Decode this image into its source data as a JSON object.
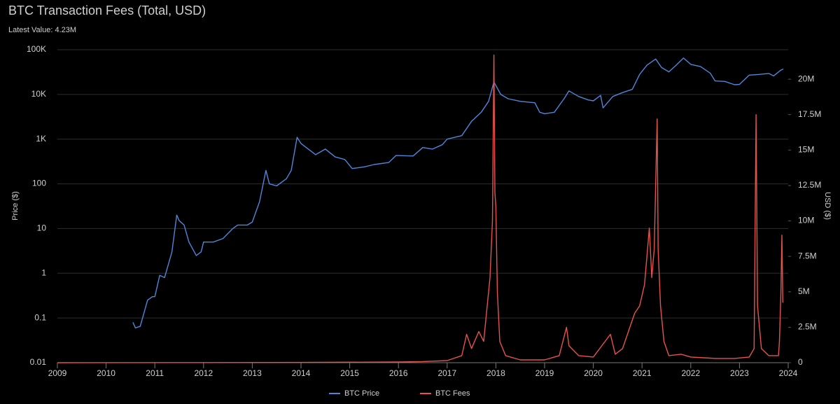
{
  "chart_data": {
    "type": "line",
    "title": "BTC Transaction Fees (Total, USD)",
    "subtitle": "Latest Value: 4.23M",
    "y_label": "Price ($)",
    "y2_label": "USD ($)",
    "xlim": [
      2009,
      2024
    ],
    "xticks": [
      2009,
      2010,
      2011,
      2012,
      2013,
      2014,
      2015,
      2016,
      2017,
      2018,
      2019,
      2020,
      2021,
      2022,
      2023,
      2024
    ],
    "ylog": true,
    "ylim": [
      0.01,
      100000
    ],
    "yticks": [
      0.01,
      0.1,
      1,
      10,
      100,
      {
        "value": 1000,
        "label": "1K"
      },
      {
        "value": 10000,
        "label": "10K"
      },
      {
        "value": 100000,
        "label": "100K"
      }
    ],
    "y2lim": [
      0,
      22080000
    ],
    "y2ticks": [
      0,
      {
        "value": 2500000,
        "label": "2.5M"
      },
      {
        "value": 5000000,
        "label": "5M"
      },
      {
        "value": 7500000,
        "label": "7.5M"
      },
      {
        "value": 10000000,
        "label": "10M"
      },
      {
        "value": 12500000,
        "label": "12.5M"
      },
      {
        "value": 15000000,
        "label": "15M"
      },
      {
        "value": 17500000,
        "label": "17.5M"
      },
      {
        "value": 20000000,
        "label": "20M"
      }
    ],
    "grid": true,
    "legend": "bottom",
    "series": [
      {
        "name": "BTC Price",
        "color": "#4f86d9",
        "x": [
          2010.55,
          2010.6,
          2010.7,
          2010.85,
          2010.95,
          2011.0,
          2011.1,
          2011.2,
          2011.35,
          2011.45,
          2011.5,
          2011.6,
          2011.7,
          2011.85,
          2011.95,
          2012.0,
          2012.2,
          2012.4,
          2012.6,
          2012.7,
          2012.9,
          2013.0,
          2013.15,
          2013.28,
          2013.35,
          2013.5,
          2013.7,
          2013.8,
          2013.92,
          2014.0,
          2014.15,
          2014.3,
          2014.5,
          2014.7,
          2014.9,
          2015.05,
          2015.3,
          2015.5,
          2015.8,
          2015.95,
          2016.3,
          2016.5,
          2016.7,
          2016.9,
          2017.0,
          2017.3,
          2017.5,
          2017.7,
          2017.85,
          2017.96,
          2018.1,
          2018.25,
          2018.5,
          2018.8,
          2018.9,
          2019.0,
          2019.2,
          2019.4,
          2019.5,
          2019.7,
          2019.9,
          2020.0,
          2020.15,
          2020.2,
          2020.4,
          2020.6,
          2020.8,
          2020.95,
          2021.1,
          2021.28,
          2021.4,
          2021.55,
          2021.7,
          2021.85,
          2022.0,
          2022.2,
          2022.4,
          2022.5,
          2022.7,
          2022.9,
          2023.0,
          2023.2,
          2023.4,
          2023.6,
          2023.7,
          2023.85,
          2023.9
        ],
        "values": [
          0.08,
          0.06,
          0.065,
          0.25,
          0.3,
          0.3,
          0.9,
          0.8,
          3,
          20,
          15,
          12,
          5,
          2.5,
          3,
          5,
          5,
          6,
          10,
          12,
          12,
          14,
          40,
          200,
          100,
          90,
          130,
          200,
          1100,
          800,
          600,
          450,
          600,
          400,
          350,
          220,
          240,
          270,
          300,
          430,
          420,
          650,
          600,
          750,
          1000,
          1200,
          2500,
          4000,
          7000,
          19000,
          10000,
          8000,
          7000,
          6500,
          4000,
          3700,
          4000,
          8000,
          12000,
          9000,
          7500,
          7200,
          9500,
          5000,
          9000,
          11000,
          13000,
          28000,
          45000,
          62000,
          40000,
          32000,
          45000,
          65000,
          47000,
          42000,
          30000,
          20000,
          19500,
          16500,
          16800,
          27000,
          28000,
          29500,
          26000,
          35000,
          37000
        ]
      },
      {
        "name": "BTC Fees",
        "color": "#e5534b",
        "axis": "y2",
        "x": [
          2009.0,
          2012.0,
          2014.0,
          2016.0,
          2016.5,
          2017.0,
          2017.3,
          2017.4,
          2017.5,
          2017.65,
          2017.75,
          2017.88,
          2017.93,
          2017.96,
          2017.98,
          2018.0,
          2018.03,
          2018.08,
          2018.2,
          2018.5,
          2019.0,
          2019.3,
          2019.45,
          2019.5,
          2019.7,
          2020.0,
          2020.35,
          2020.45,
          2020.6,
          2020.75,
          2020.85,
          2020.95,
          2021.05,
          2021.1,
          2021.15,
          2021.2,
          2021.25,
          2021.31,
          2021.33,
          2021.38,
          2021.45,
          2021.55,
          2021.8,
          2022.0,
          2022.5,
          2022.9,
          2023.2,
          2023.3,
          2023.34,
          2023.37,
          2023.45,
          2023.6,
          2023.8,
          2023.82,
          2023.85,
          2023.87,
          2023.89
        ],
        "values": [
          0,
          10000,
          20000,
          50000,
          80000,
          150000,
          500000,
          2000000,
          1000000,
          2200000,
          1500000,
          6000000,
          10000000,
          21700000,
          12000000,
          11000000,
          5000000,
          1500000,
          500000,
          200000,
          200000,
          500000,
          2500000,
          1200000,
          500000,
          400000,
          2000000,
          600000,
          1000000,
          2500000,
          3500000,
          4000000,
          5500000,
          7500000,
          9500000,
          6000000,
          8000000,
          17200000,
          8000000,
          4000000,
          1500000,
          500000,
          600000,
          400000,
          300000,
          300000,
          400000,
          1000000,
          17500000,
          4000000,
          1000000,
          500000,
          500000,
          1500000,
          5000000,
          9000000,
          4230000
        ]
      }
    ]
  }
}
